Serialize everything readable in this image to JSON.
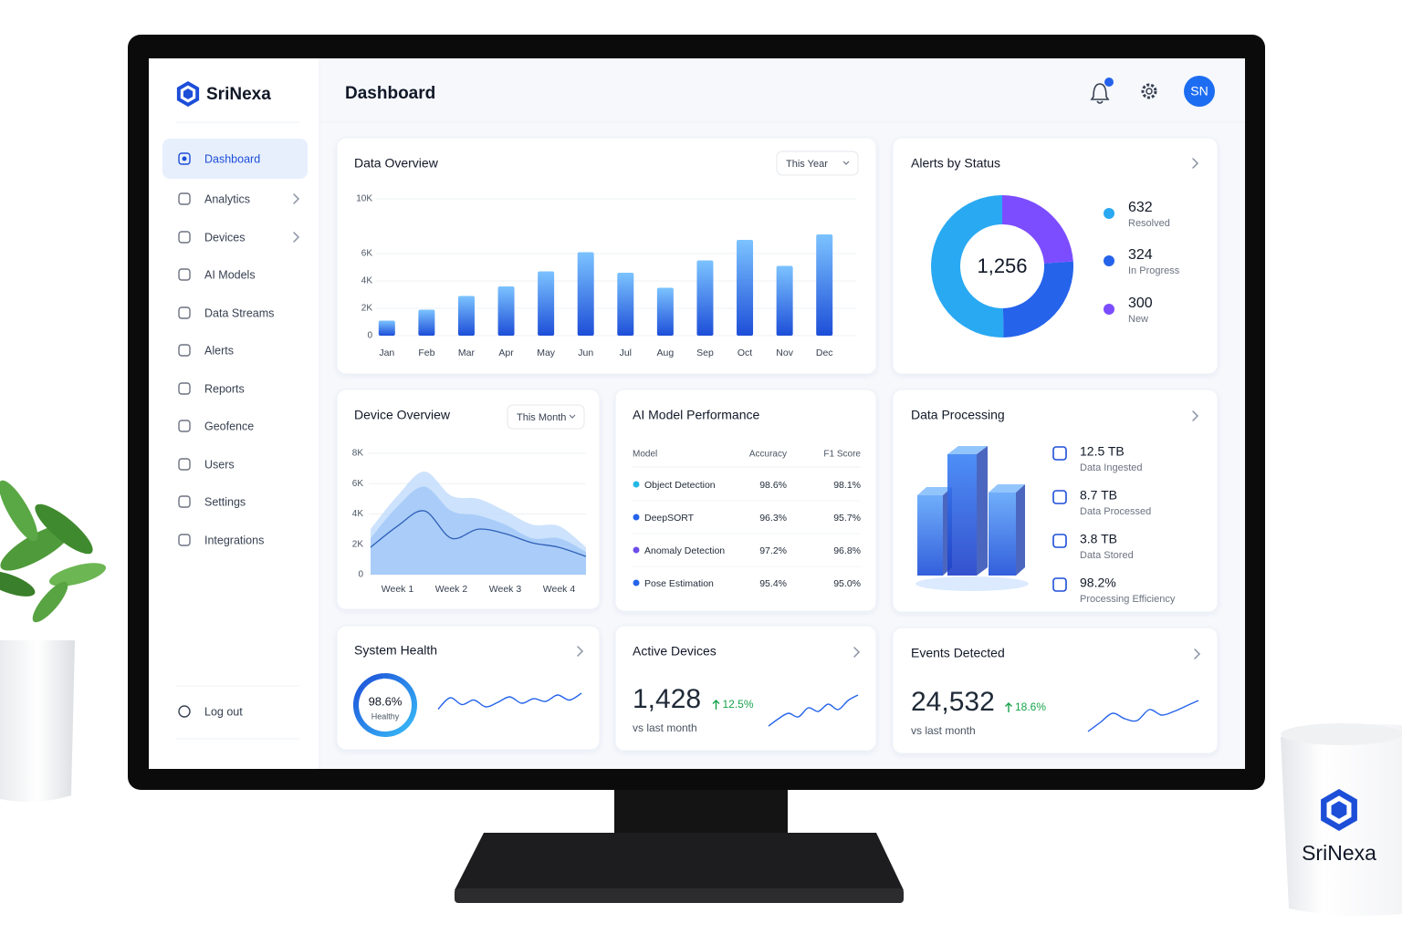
{
  "brand": "SriNexa",
  "header": {
    "title": "Dashboard",
    "avatar": "SN"
  },
  "sidebar": {
    "items": [
      {
        "label": "Dashboard",
        "active": true
      },
      {
        "label": "Analytics",
        "submenu": true
      },
      {
        "label": "Devices",
        "submenu": true
      },
      {
        "label": "AI Models"
      },
      {
        "label": "Data Streams"
      },
      {
        "label": "Alerts"
      },
      {
        "label": "Reports"
      },
      {
        "label": "Geofence"
      },
      {
        "label": "Users"
      },
      {
        "label": "Settings"
      },
      {
        "label": "Integrations"
      }
    ],
    "logout": "Log out"
  },
  "data_overview": {
    "title": "Data Overview",
    "filter": "This Year",
    "chart_data": {
      "type": "bar",
      "categories": [
        "Jan",
        "Feb",
        "Mar",
        "Apr",
        "May",
        "Jun",
        "Jul",
        "Aug",
        "Sep",
        "Oct",
        "Nov",
        "Dec"
      ],
      "values": [
        1100,
        1900,
        2900,
        3600,
        4700,
        6100,
        4600,
        3500,
        5500,
        7000,
        5100,
        7400
      ],
      "color": "#1d4ed8",
      "ylim": [
        0,
        10000
      ],
      "yticks": [
        0,
        {
          "value": 2000,
          "label": "2K"
        },
        {
          "value": 4000,
          "label": "4K"
        },
        {
          "value": 6000,
          "label": "6K"
        },
        {
          "value": 10000,
          "label": "10K"
        }
      ],
      "grid": true
    }
  },
  "alerts": {
    "title": "Alerts by Status",
    "chart_data": {
      "type": "pie",
      "total": {
        "value": 1256,
        "label": "1,256"
      },
      "categories": [
        "Resolved",
        "In Progress",
        "New"
      ],
      "values": [
        632,
        324,
        300
      ],
      "colors": [
        "#29a9f2",
        "#2563eb",
        "#7c4dff"
      ]
    }
  },
  "device_overview": {
    "title": "Device Overview",
    "filter": "This Month",
    "chart_data": {
      "type": "area",
      "categories": [
        null,
        "Week 1",
        null,
        "Week 2",
        null,
        "Week 3",
        null,
        "Week 4",
        null
      ],
      "series": [
        {
          "color": "#bcd8fb",
          "values": [
            3000,
            5200,
            6800,
            5200,
            5000,
            4200,
            3300,
            3200,
            1800
          ]
        },
        {
          "color": "#9cc6f7",
          "values": [
            2400,
            4500,
            5800,
            4200,
            3900,
            3300,
            2400,
            2400,
            1500
          ]
        },
        {
          "color": "#2f5fb8",
          "values": [
            1800,
            3200,
            4200,
            2400,
            3000,
            2700,
            2100,
            1800,
            1200
          ]
        }
      ],
      "ylim": [
        0,
        8000
      ],
      "yticks": [
        0,
        {
          "value": 2000,
          "label": "2K"
        },
        {
          "value": 4000,
          "label": "4K"
        },
        {
          "value": 6000,
          "label": "6K"
        },
        {
          "value": 8000,
          "label": "8K"
        }
      ],
      "grid": true
    }
  },
  "ai_models": {
    "title": "AI Model Performance",
    "table": {
      "header": [
        "Model",
        "Accuracy",
        "F1 Score"
      ],
      "rows": [
        {
          "color": "#22b8e6",
          "cells": [
            "Object Detection",
            "98.6%",
            "98.1%"
          ]
        },
        {
          "color": "#2563eb",
          "cells": [
            "DeepSORT",
            "96.3%",
            "95.7%"
          ]
        },
        {
          "color": "#6d4de8",
          "cells": [
            "Anomaly Detection",
            "97.2%",
            "96.8%"
          ]
        },
        {
          "color": "#2563eb",
          "cells": [
            "Pose Estimation",
            "95.4%",
            "95.0%"
          ]
        }
      ]
    }
  },
  "data_processing": {
    "title": "Data Processing",
    "items": [
      {
        "value": "12.5 TB",
        "label": "Data Ingested"
      },
      {
        "value": "8.7 TB",
        "label": "Data Processed"
      },
      {
        "value": "3.8 TB",
        "label": "Data Stored"
      },
      {
        "value": "98.2%",
        "label": "Processing Efficiency"
      }
    ]
  },
  "system_health": {
    "title": "System Health",
    "value": 98.6,
    "value_label": "98.6%",
    "status": "Healthy",
    "trend": [
      35,
      60,
      45,
      55,
      40,
      50,
      62,
      48,
      58,
      52,
      66,
      55,
      70
    ]
  },
  "active_devices": {
    "title": "Active Devices",
    "value": "1,428",
    "change": "12.5%",
    "note": "vs last month",
    "trend": [
      10,
      30,
      45,
      35,
      60,
      50,
      70,
      55,
      80,
      95
    ]
  },
  "events": {
    "title": "Events Detected",
    "value": "24,532",
    "change": "18.6%",
    "note": "vs last month",
    "trend": [
      10,
      35,
      60,
      45,
      40,
      70,
      55,
      65,
      80,
      95
    ]
  },
  "mug": {
    "brand": "SriNexa"
  }
}
